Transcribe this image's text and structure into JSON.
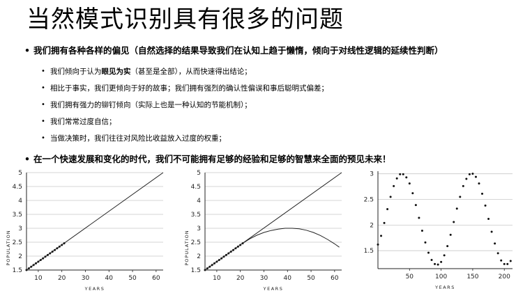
{
  "slide": {
    "title": "当然模式识别具有很多的问题",
    "bullets": [
      {
        "text": "我们拥有各种各样的偏见（自然选择的结果导致我们在认知上趋于懒惰，倾向于对线性逻辑的延续性判断）",
        "sub": [
          {
            "pre": "我们倾向于认为",
            "bold": "眼见为实",
            "post": "（甚至是全部），从而快速得出结论；"
          },
          {
            "pre": "相比于事实，我们更倾向于好的故事；我们拥有强烈的确认性偏误和事后聪明式偏差；",
            "bold": "",
            "post": ""
          },
          {
            "pre": "我们拥有强力的铆钉倾向（实际上也是一种认知的节能机制）；",
            "bold": "",
            "post": ""
          },
          {
            "pre": "我们常常过度自信；",
            "bold": "",
            "post": ""
          },
          {
            "pre": "当做决策时，我们往往对风险比收益放入过度的权重；",
            "bold": "",
            "post": ""
          }
        ]
      },
      {
        "text": "在一个快速发展和变化的时代，我们不可能拥有足够的经验和足够的智慧来全面的预见未来！",
        "sub": []
      }
    ],
    "bullet_symbol": "•",
    "sub_bullet_symbol": "•"
  },
  "chart_data": [
    {
      "type": "line",
      "xlabel": "YEARS",
      "ylabel": "POPULATION",
      "xlim": [
        5,
        63
      ],
      "ylim": [
        1.5,
        5
      ],
      "xticks": [
        10,
        20,
        30,
        40,
        50,
        60
      ],
      "yticks": [
        1.5,
        2,
        2.5,
        3,
        3.5,
        4,
        4.5,
        5
      ],
      "grid": "horizontal",
      "series": [
        {
          "style": "dots",
          "x": [
            5,
            6,
            7,
            8,
            9,
            10,
            11,
            12,
            13,
            14,
            15,
            16,
            17,
            18,
            19,
            20,
            21
          ],
          "y": [
            1.5,
            1.56,
            1.62,
            1.68,
            1.74,
            1.8,
            1.86,
            1.92,
            1.98,
            2.04,
            2.1,
            2.16,
            2.22,
            2.28,
            2.34,
            2.4,
            2.46
          ]
        },
        {
          "style": "line",
          "x": [
            5,
            63
          ],
          "y": [
            1.5,
            5
          ]
        }
      ]
    },
    {
      "type": "line",
      "xlabel": "YEARS",
      "ylabel": "POPULATION",
      "xlim": [
        5,
        63
      ],
      "ylim": [
        1.5,
        5
      ],
      "xticks": [
        10,
        20,
        30,
        40,
        50,
        60
      ],
      "yticks": [
        1.5,
        2,
        2.5,
        3,
        3.5,
        4,
        4.5,
        5
      ],
      "grid": "horizontal",
      "series": [
        {
          "style": "dots",
          "x": [
            5,
            6,
            7,
            8,
            9,
            10,
            11,
            12,
            13,
            14,
            15,
            16,
            17,
            18,
            19,
            20,
            21
          ],
          "y": [
            1.5,
            1.56,
            1.62,
            1.68,
            1.74,
            1.8,
            1.86,
            1.92,
            1.98,
            2.04,
            2.1,
            2.16,
            2.22,
            2.28,
            2.34,
            2.4,
            2.46
          ]
        },
        {
          "style": "line",
          "x": [
            5,
            63
          ],
          "y": [
            1.5,
            5
          ]
        },
        {
          "style": "line",
          "x": [
            21,
            24,
            27,
            30,
            33,
            36,
            39,
            42,
            45,
            48,
            51,
            54,
            57,
            60,
            62
          ],
          "y": [
            2.46,
            2.62,
            2.75,
            2.85,
            2.92,
            2.97,
            3.0,
            3.0,
            2.98,
            2.93,
            2.85,
            2.74,
            2.6,
            2.44,
            2.32
          ]
        }
      ]
    },
    {
      "type": "scatter",
      "xlabel": "YEARS",
      "ylabel": "",
      "xlim": [
        0,
        213
      ],
      "ylim": [
        1.15,
        3.05
      ],
      "xticks": [
        50,
        100,
        150,
        200
      ],
      "yticks": [
        1.5,
        2,
        2.5,
        3
      ],
      "grid": "horizontal",
      "series": [
        {
          "style": "dots",
          "x": [
            0,
            5,
            10,
            15,
            20,
            25,
            30,
            35,
            40,
            45,
            50,
            55,
            60,
            65,
            70,
            75,
            80,
            85,
            90,
            95,
            100,
            105,
            110,
            115,
            120,
            125,
            130,
            135,
            140,
            145,
            150,
            155,
            160,
            165,
            170,
            175,
            180,
            185,
            190,
            195,
            200,
            205,
            210
          ],
          "y": [
            1.62,
            1.79,
            2.04,
            2.31,
            2.55,
            2.76,
            2.91,
            2.99,
            2.99,
            2.93,
            2.81,
            2.62,
            2.39,
            2.14,
            1.89,
            1.66,
            1.46,
            1.32,
            1.24,
            1.23,
            1.28,
            1.41,
            1.59,
            1.81,
            2.06,
            2.32,
            2.55,
            2.76,
            2.9,
            2.99,
            3.0,
            2.94,
            2.81,
            2.61,
            2.38,
            2.12,
            1.87,
            1.64,
            1.45,
            1.31,
            1.24,
            1.24,
            1.3
          ]
        }
      ]
    }
  ]
}
